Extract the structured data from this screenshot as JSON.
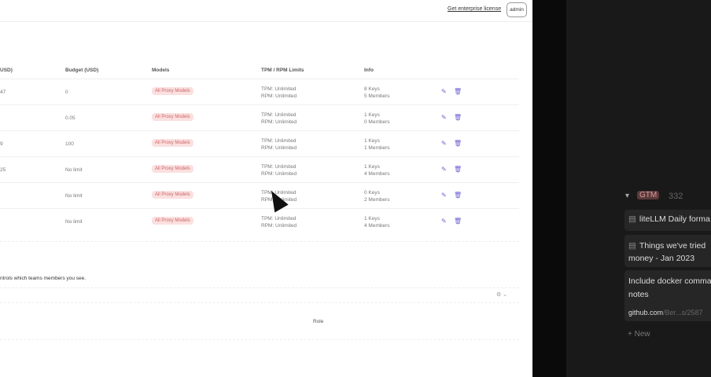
{
  "header": {
    "enterprise_link": "Get enterprise license",
    "user_button": "admin"
  },
  "table": {
    "headers": [
      "USD)",
      "Budget (USD)",
      "Models",
      "TPM / RPM Limits",
      "Info"
    ],
    "rows": [
      {
        "spend": "47",
        "budget": "0",
        "model": "All Proxy Models",
        "tpm": "TPM: Unlimited",
        "rpm": "RPM: Unlimited",
        "keys": "8 Keys",
        "members": "5 Members"
      },
      {
        "spend": "",
        "budget": "0.05",
        "model": "All Proxy Models",
        "tpm": "TPM: Unlimited",
        "rpm": "RPM: Unlimited",
        "keys": "1 Keys",
        "members": "0 Members"
      },
      {
        "spend": "9",
        "budget": "100",
        "model": "All Proxy Models",
        "tpm": "TPM: Unlimited",
        "rpm": "RPM: Unlimited",
        "keys": "1 Keys",
        "members": "1 Members"
      },
      {
        "spend": "25",
        "budget": "No limit",
        "model": "All Proxy Models",
        "tpm": "TPM: Unlimited",
        "rpm": "RPM: Unlimited",
        "keys": "1 Keys",
        "members": "4 Members"
      },
      {
        "spend": "",
        "budget": "No limit",
        "model": "All Proxy Models",
        "tpm": "TPM: Unlimited",
        "rpm": "RPM: Unlimited",
        "keys": "0 Keys",
        "members": "2 Members"
      },
      {
        "spend": "",
        "budget": "No limit",
        "model": "All Proxy Models",
        "tpm": "TPM: Unlimited",
        "rpm": "RPM: Unlimited",
        "keys": "1 Keys",
        "members": "4 Members"
      }
    ]
  },
  "members": {
    "note": "ntrols which teams members you see.",
    "role_header": "Role"
  },
  "notion": {
    "group_tag": "GTM",
    "group_count": "332",
    "cards": [
      "liteLLM Daily forma",
      "Things we've tried money - Jan 2023",
      "Include docker comma notes"
    ],
    "link_host": "github.com",
    "link_path": "/Ber...s/2587",
    "new_label": "New"
  },
  "colors": {
    "accent": "#6b5fd3",
    "pill_bg": "#fbe0e0",
    "dark_bg": "#191919"
  }
}
